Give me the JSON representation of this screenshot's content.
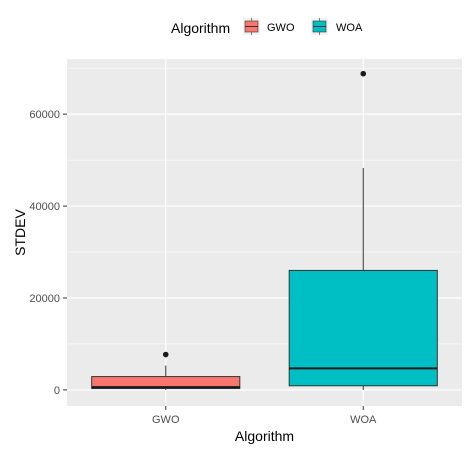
{
  "chart_data": {
    "type": "boxplot",
    "xlabel": "Algorithm",
    "ylabel": "STDEV",
    "categories": [
      "GWO",
      "WOA"
    ],
    "ylim": [
      -3500,
      72000
    ],
    "yticks": [
      0,
      20000,
      40000,
      60000
    ],
    "ytick_labels": [
      "0",
      "20000",
      "40000",
      "60000"
    ],
    "legend": {
      "title": "Algorithm",
      "position": "top",
      "entries": [
        "GWO",
        "WOA"
      ]
    },
    "grid": true,
    "series": [
      {
        "category": "GWO",
        "color": "#F8766D",
        "lower_whisker": 0,
        "q1": 300,
        "median": 600,
        "q3": 2900,
        "upper_whisker": 5300,
        "outliers": [
          7700
        ]
      },
      {
        "category": "WOA",
        "color": "#00BFC4",
        "lower_whisker": 0,
        "q1": 900,
        "median": 4700,
        "q3": 26000,
        "upper_whisker": 48300,
        "outliers": [
          68800
        ]
      }
    ]
  }
}
